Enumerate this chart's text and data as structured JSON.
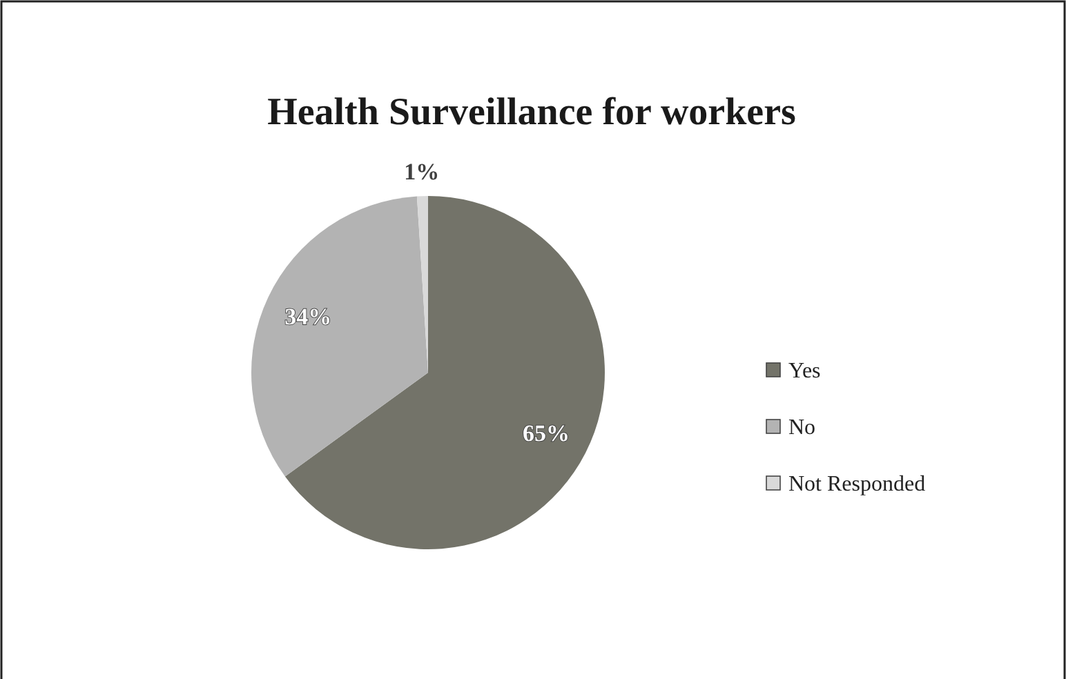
{
  "chart_data": {
    "type": "pie",
    "title": "Health Surveillance for workers",
    "categories": [
      "Yes",
      "No",
      "Not Responded"
    ],
    "values": [
      65,
      34,
      1
    ],
    "colors": [
      "#737369",
      "#b3b3b3",
      "#d9d9d9"
    ],
    "value_labels": [
      "65%",
      "34%",
      "1%"
    ],
    "legend": "right"
  }
}
